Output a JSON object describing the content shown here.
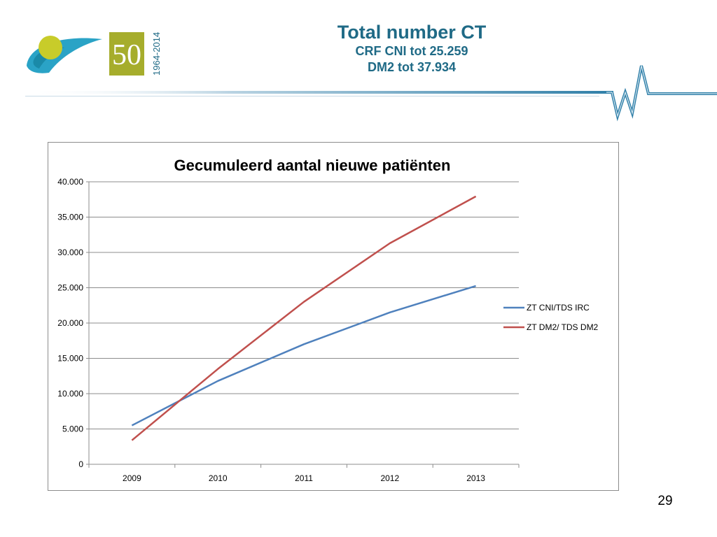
{
  "header": {
    "title": "Total number CT",
    "line2": "CRF CNI tot 25.259",
    "line3": "DM2 tot 37.934"
  },
  "logo": {
    "years_label": "1964-2014",
    "anniversary": "50"
  },
  "page_number": "29",
  "colors": {
    "title": "#1f6a86",
    "series_1": "#4f81bd",
    "series_2": "#c0504d",
    "logo_blue": "#2aa3c6",
    "logo_green": "#c8cc2a",
    "logo_olive": "#a6ad2c"
  },
  "chart_data": {
    "type": "line",
    "title": "Gecumuleerd aantal nieuwe patiënten",
    "categories": [
      "2009",
      "2010",
      "2011",
      "2012",
      "2013"
    ],
    "series": [
      {
        "name": "ZT CNI/TDS IRC",
        "values": [
          5500,
          11800,
          17000,
          21500,
          25259
        ]
      },
      {
        "name": "ZT DM2/ TDS DM2",
        "values": [
          3400,
          13500,
          23000,
          31300,
          37934
        ]
      }
    ],
    "ylim": [
      0,
      40000
    ],
    "yticks": [
      "0",
      "5.000",
      "10.000",
      "15.000",
      "20.000",
      "25.000",
      "30.000",
      "35.000",
      "40.000"
    ],
    "yticks_values": [
      0,
      5000,
      10000,
      15000,
      20000,
      25000,
      30000,
      35000,
      40000
    ],
    "grid": true,
    "legend": "right"
  }
}
